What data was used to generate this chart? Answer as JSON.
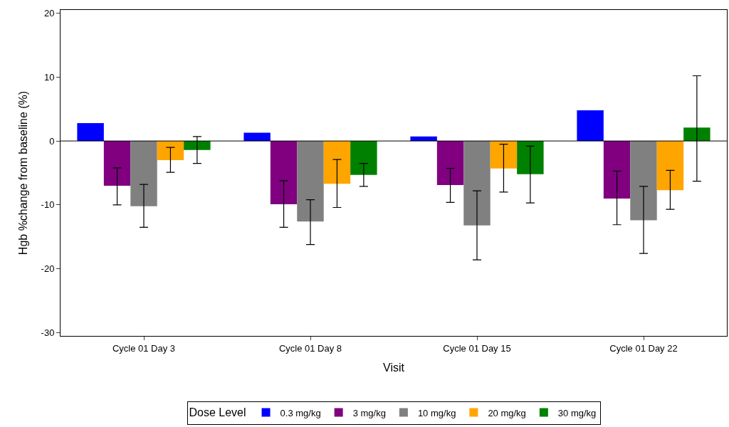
{
  "chart_data": {
    "type": "bar",
    "xlabel": "Visit",
    "ylabel": "Hgb %change from baseline (%)",
    "legend_title": "Dose Level",
    "categories": [
      "Cycle 01 Day 3",
      "Cycle 01 Day 8",
      "Cycle 01 Day 15",
      "Cycle 01 Day 22"
    ],
    "series": [
      {
        "name": "0.3 mg/kg",
        "color": "#0000ff",
        "values": [
          2.8,
          1.3,
          0.7,
          4.8
        ]
      },
      {
        "name": "3 mg/kg",
        "color": "#800080",
        "values": [
          -7.0,
          -9.9,
          -6.9,
          -9.0
        ],
        "errors": [
          [
            -10.0,
            -4.2
          ],
          [
            -13.5,
            -6.2
          ],
          [
            -9.6,
            -4.3
          ],
          [
            -13.1,
            -4.7
          ]
        ]
      },
      {
        "name": "10 mg/kg",
        "color": "#808080",
        "values": [
          -10.2,
          -12.6,
          -13.2,
          -12.4
        ],
        "errors": [
          [
            -13.5,
            -6.8
          ],
          [
            -16.2,
            -9.2
          ],
          [
            -18.6,
            -7.8
          ],
          [
            -17.6,
            -7.1
          ]
        ]
      },
      {
        "name": "20 mg/kg",
        "color": "#ffa500",
        "values": [
          -3.0,
          -6.7,
          -4.3,
          -7.7
        ],
        "errors": [
          [
            -4.9,
            -1.0
          ],
          [
            -10.4,
            -2.9
          ],
          [
            -8.0,
            -0.5
          ],
          [
            -10.7,
            -4.6
          ]
        ]
      },
      {
        "name": "30 mg/kg",
        "color": "#008000",
        "values": [
          -1.4,
          -5.3,
          -5.2,
          2.1
        ],
        "errors": [
          [
            -3.5,
            0.7
          ],
          [
            -7.1,
            -3.5
          ],
          [
            -9.7,
            -0.8
          ],
          [
            -6.3,
            10.2
          ]
        ]
      }
    ],
    "ylim": [
      -30.5,
      20.5
    ],
    "yticks": [
      -30,
      -20,
      -10,
      0,
      10,
      20
    ],
    "legend": "bottom",
    "ref_lines": [
      {
        "axis": "y",
        "value": 0,
        "color": "#000000"
      }
    ]
  }
}
